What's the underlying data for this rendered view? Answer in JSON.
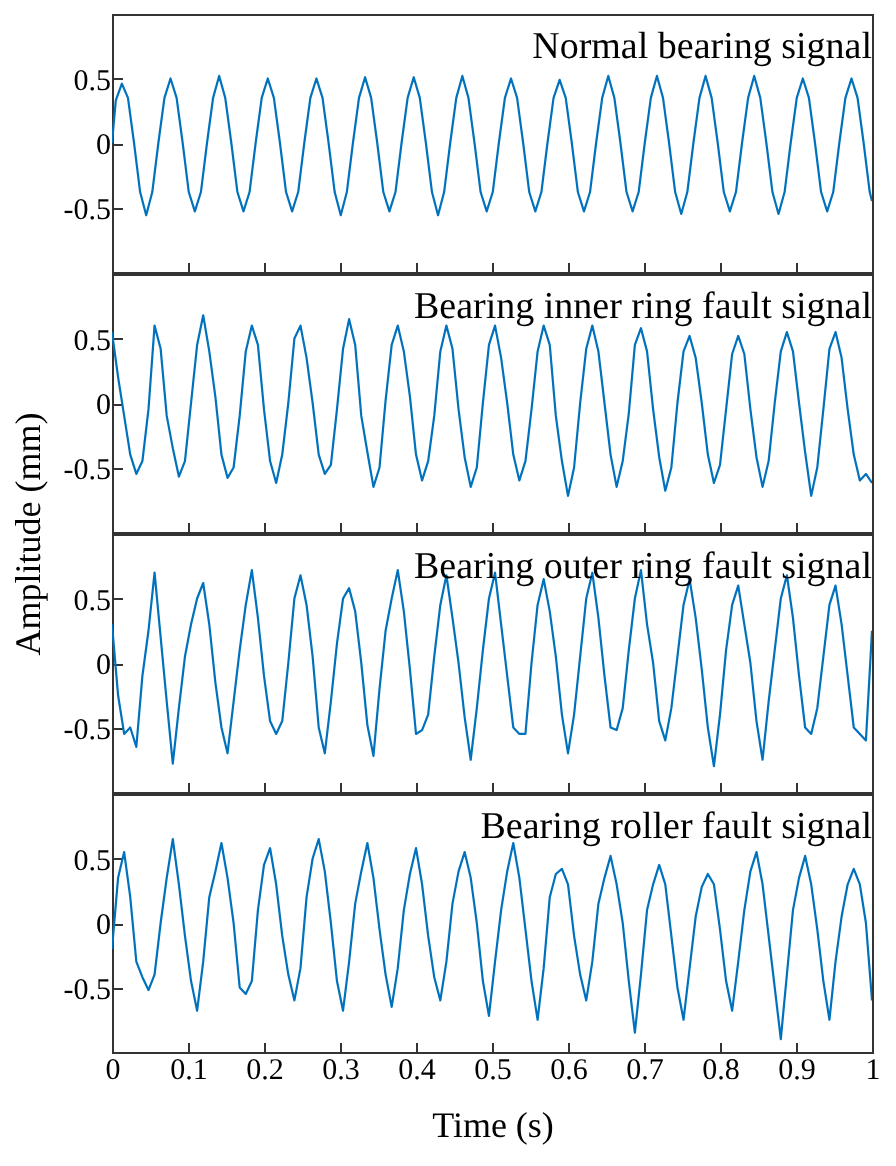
{
  "chart_data": [
    {
      "type": "line",
      "title": "Normal bearing signal",
      "tick_labels": "y",
      "xlim": [
        0,
        1
      ],
      "ylim": [
        -1,
        1
      ],
      "xticks": [
        0,
        0.1,
        0.2,
        0.3,
        0.4,
        0.5,
        0.6,
        0.7,
        0.8,
        0.9,
        1
      ],
      "yticks": [
        -0.5,
        0,
        0.5
      ],
      "x": [
        0,
        0.005,
        0.013,
        0.021,
        0.029,
        0.037,
        0.045,
        0.053,
        0.061,
        0.069,
        0.077,
        0.085,
        0.093,
        0.101,
        0.109,
        0.117,
        0.125,
        0.133,
        0.141,
        0.149,
        0.157,
        0.165,
        0.173,
        0.181,
        0.189,
        0.197,
        0.205,
        0.213,
        0.221,
        0.229,
        0.237,
        0.245,
        0.253,
        0.261,
        0.269,
        0.277,
        0.285,
        0.293,
        0.301,
        0.309,
        0.317,
        0.325,
        0.333,
        0.341,
        0.349,
        0.357,
        0.365,
        0.373,
        0.381,
        0.389,
        0.397,
        0.405,
        0.413,
        0.421,
        0.429,
        0.437,
        0.445,
        0.453,
        0.461,
        0.469,
        0.477,
        0.485,
        0.493,
        0.501,
        0.509,
        0.517,
        0.525,
        0.533,
        0.541,
        0.549,
        0.557,
        0.565,
        0.573,
        0.581,
        0.589,
        0.597,
        0.605,
        0.613,
        0.621,
        0.629,
        0.637,
        0.645,
        0.653,
        0.661,
        0.669,
        0.677,
        0.685,
        0.693,
        0.701,
        0.709,
        0.717,
        0.725,
        0.733,
        0.741,
        0.749,
        0.757,
        0.765,
        0.773,
        0.781,
        0.789,
        0.797,
        0.805,
        0.813,
        0.821,
        0.829,
        0.837,
        0.845,
        0.853,
        0.861,
        0.869,
        0.877,
        0.885,
        0.893,
        0.901,
        0.909,
        0.917,
        0.925,
        0.933,
        0.941,
        0.949,
        0.957,
        0.965,
        0.973,
        0.981,
        0.989,
        0.997,
        1
      ],
      "series": [
        {
          "color": "#0072bd",
          "values": [
            0,
            0.33,
            0.46,
            0.35,
            0,
            -0.38,
            -0.56,
            -0.38,
            0,
            0.35,
            0.5,
            0.35,
            0,
            -0.38,
            -0.53,
            -0.38,
            0,
            0.35,
            0.52,
            0.35,
            0,
            -0.38,
            -0.53,
            -0.38,
            0,
            0.35,
            0.5,
            0.35,
            0,
            -0.38,
            -0.53,
            -0.38,
            0,
            0.35,
            0.5,
            0.35,
            0,
            -0.38,
            -0.56,
            -0.38,
            0,
            0.35,
            0.51,
            0.35,
            0,
            -0.38,
            -0.53,
            -0.38,
            0,
            0.35,
            0.51,
            0.35,
            0,
            -0.38,
            -0.56,
            -0.38,
            0,
            0.35,
            0.52,
            0.35,
            0,
            -0.38,
            -0.53,
            -0.38,
            0,
            0.35,
            0.5,
            0.35,
            0,
            -0.38,
            -0.53,
            -0.38,
            0,
            0.35,
            0.49,
            0.35,
            0,
            -0.38,
            -0.53,
            -0.38,
            0,
            0.35,
            0.52,
            0.35,
            0,
            -0.38,
            -0.53,
            -0.38,
            0,
            0.35,
            0.52,
            0.35,
            0,
            -0.38,
            -0.55,
            -0.38,
            0,
            0.35,
            0.52,
            0.35,
            0,
            -0.38,
            -0.53,
            -0.38,
            0,
            0.35,
            0.52,
            0.35,
            0,
            -0.38,
            -0.55,
            -0.38,
            0,
            0.35,
            0.5,
            0.35,
            0,
            -0.38,
            -0.53,
            -0.38,
            0,
            0.35,
            0.5,
            0.35,
            0,
            -0.38,
            -0.45
          ]
        }
      ]
    },
    {
      "type": "line",
      "title": "Bearing inner ring fault signal",
      "ylabel": "Amplitude (mm)",
      "tick_labels": "y",
      "xlim": [
        0,
        1
      ],
      "ylim": [
        -1,
        1
      ],
      "xticks": [
        0,
        0.1,
        0.2,
        0.3,
        0.4,
        0.5,
        0.6,
        0.7,
        0.8,
        0.9,
        1
      ],
      "yticks": [
        -0.5,
        0,
        0.5
      ],
      "x": [
        0,
        0.008,
        0.016,
        0.024,
        0.032,
        0.04,
        0.048,
        0.056,
        0.064,
        0.072,
        0.08,
        0.088,
        0.096,
        0.104,
        0.112,
        0.12,
        0.128,
        0.136,
        0.144,
        0.152,
        0.16,
        0.168,
        0.176,
        0.184,
        0.192,
        0.2,
        0.208,
        0.216,
        0.224,
        0.232,
        0.24,
        0.248,
        0.256,
        0.264,
        0.272,
        0.28,
        0.288,
        0.296,
        0.304,
        0.312,
        0.32,
        0.328,
        0.336,
        0.344,
        0.352,
        0.36,
        0.368,
        0.376,
        0.384,
        0.392,
        0.4,
        0.408,
        0.416,
        0.424,
        0.432,
        0.44,
        0.448,
        0.456,
        0.464,
        0.472,
        0.48,
        0.488,
        0.496,
        0.504,
        0.512,
        0.52,
        0.528,
        0.536,
        0.544,
        0.552,
        0.56,
        0.568,
        0.576,
        0.584,
        0.592,
        0.6,
        0.608,
        0.616,
        0.624,
        0.632,
        0.64,
        0.648,
        0.656,
        0.664,
        0.672,
        0.68,
        0.688,
        0.696,
        0.704,
        0.712,
        0.72,
        0.728,
        0.736,
        0.744,
        0.752,
        0.76,
        0.768,
        0.776,
        0.784,
        0.792,
        0.8,
        0.808,
        0.816,
        0.824,
        0.832,
        0.84,
        0.848,
        0.856,
        0.864,
        0.872,
        0.88,
        0.888,
        0.896,
        0.904,
        0.912,
        0.92,
        0.928,
        0.936,
        0.944,
        0.952,
        0.96,
        0.968,
        0.976,
        0.984,
        0.992,
        1
      ],
      "series": [
        {
          "color": "#0072bd",
          "values": [
            0.55,
            0.2,
            -0.1,
            -0.4,
            -0.55,
            -0.45,
            -0.05,
            0.6,
            0.42,
            -0.1,
            -0.35,
            -0.57,
            -0.45,
            0,
            0.45,
            0.68,
            0.4,
            0.05,
            -0.4,
            -0.58,
            -0.5,
            -0.1,
            0.4,
            0.6,
            0.45,
            -0.05,
            -0.45,
            -0.62,
            -0.4,
            0,
            0.5,
            0.6,
            0.35,
            0,
            -0.4,
            -0.55,
            -0.48,
            -0.05,
            0.42,
            0.65,
            0.45,
            -0.1,
            -0.38,
            -0.65,
            -0.5,
            0.02,
            0.45,
            0.6,
            0.4,
            0.05,
            -0.4,
            -0.6,
            -0.45,
            -0.1,
            0.4,
            0.6,
            0.42,
            -0.05,
            -0.42,
            -0.65,
            -0.5,
            0,
            0.45,
            0.6,
            0.35,
            0,
            -0.4,
            -0.6,
            -0.45,
            -0.05,
            0.4,
            0.6,
            0.45,
            -0.1,
            -0.45,
            -0.72,
            -0.5,
            0,
            0.42,
            0.6,
            0.4,
            0,
            -0.4,
            -0.65,
            -0.45,
            -0.08,
            0.45,
            0.58,
            0.4,
            -0.05,
            -0.42,
            -0.68,
            -0.5,
            0,
            0.4,
            0.52,
            0.35,
            0,
            -0.4,
            -0.62,
            -0.48,
            -0.05,
            0.38,
            0.52,
            0.38,
            -0.05,
            -0.42,
            -0.65,
            -0.45,
            0,
            0.4,
            0.55,
            0.4,
            0,
            -0.38,
            -0.72,
            -0.5,
            -0.05,
            0.42,
            0.55,
            0.35,
            -0.05,
            -0.4,
            -0.6,
            -0.55,
            -0.62
          ]
        }
      ]
    },
    {
      "type": "line",
      "title": "Bearing outer ring fault signal",
      "tick_labels": "y",
      "xlim": [
        0,
        1
      ],
      "ylim": [
        -1,
        1
      ],
      "xticks": [
        0,
        0.1,
        0.2,
        0.3,
        0.4,
        0.5,
        0.6,
        0.7,
        0.8,
        0.9,
        1
      ],
      "yticks": [
        -0.5,
        0,
        0.5
      ],
      "x": [
        0,
        0.008,
        0.016,
        0.024,
        0.032,
        0.04,
        0.048,
        0.056,
        0.064,
        0.072,
        0.08,
        0.088,
        0.096,
        0.104,
        0.112,
        0.12,
        0.128,
        0.136,
        0.144,
        0.152,
        0.16,
        0.168,
        0.176,
        0.184,
        0.192,
        0.2,
        0.208,
        0.216,
        0.224,
        0.232,
        0.24,
        0.248,
        0.256,
        0.264,
        0.272,
        0.28,
        0.288,
        0.296,
        0.304,
        0.312,
        0.32,
        0.328,
        0.336,
        0.344,
        0.352,
        0.36,
        0.368,
        0.376,
        0.384,
        0.392,
        0.4,
        0.408,
        0.416,
        0.424,
        0.432,
        0.44,
        0.448,
        0.456,
        0.464,
        0.472,
        0.48,
        0.488,
        0.496,
        0.504,
        0.512,
        0.52,
        0.528,
        0.536,
        0.544,
        0.552,
        0.56,
        0.568,
        0.576,
        0.584,
        0.592,
        0.6,
        0.608,
        0.616,
        0.624,
        0.632,
        0.64,
        0.648,
        0.656,
        0.664,
        0.672,
        0.68,
        0.688,
        0.696,
        0.704,
        0.712,
        0.72,
        0.728,
        0.736,
        0.744,
        0.752,
        0.76,
        0.768,
        0.776,
        0.784,
        0.792,
        0.8,
        0.808,
        0.816,
        0.824,
        0.832,
        0.84,
        0.848,
        0.856,
        0.864,
        0.872,
        0.88,
        0.888,
        0.896,
        0.904,
        0.912,
        0.92,
        0.928,
        0.936,
        0.944,
        0.952,
        0.96,
        0.968,
        0.976,
        0.984,
        0.992,
        1
      ],
      "series": [
        {
          "color": "#0072bd",
          "values": [
            0.3,
            -0.25,
            -0.55,
            -0.5,
            -0.65,
            -0.1,
            0.25,
            0.7,
            0.2,
            -0.3,
            -0.78,
            -0.35,
            0.05,
            0.3,
            0.5,
            0.62,
            0.3,
            -0.15,
            -0.5,
            -0.7,
            -0.3,
            0.1,
            0.45,
            0.72,
            0.35,
            -0.1,
            -0.45,
            -0.55,
            -0.45,
            0,
            0.5,
            0.68,
            0.45,
            0.05,
            -0.5,
            -0.7,
            -0.3,
            0.15,
            0.5,
            0.58,
            0.4,
            0,
            -0.48,
            -0.72,
            -0.2,
            0.25,
            0.5,
            0.72,
            0.4,
            -0.05,
            -0.55,
            -0.52,
            -0.4,
            0.05,
            0.45,
            0.68,
            0.35,
            0,
            -0.42,
            -0.75,
            -0.35,
            0.1,
            0.5,
            0.7,
            0.3,
            -0.1,
            -0.5,
            -0.55,
            -0.55,
            0,
            0.45,
            0.65,
            0.4,
            0.05,
            -0.4,
            -0.7,
            -0.4,
            0.05,
            0.5,
            0.7,
            0.35,
            -0.1,
            -0.5,
            -0.52,
            -0.35,
            0.1,
            0.5,
            0.72,
            0.3,
            0,
            -0.45,
            -0.6,
            -0.35,
            0.05,
            0.45,
            0.65,
            0.35,
            -0.05,
            -0.5,
            -0.8,
            -0.4,
            0.1,
            0.45,
            0.6,
            0.3,
            0,
            -0.45,
            -0.75,
            -0.3,
            0.1,
            0.5,
            0.68,
            0.35,
            -0.1,
            -0.5,
            -0.55,
            -0.35,
            0.05,
            0.45,
            0.6,
            0.3,
            -0.1,
            -0.5,
            -0.55,
            -0.6,
            0.25
          ]
        }
      ]
    },
    {
      "type": "line",
      "title": "Bearing roller fault signal",
      "xlabel": "Time (s)",
      "xlim": [
        0,
        1
      ],
      "ylim": [
        -1,
        1
      ],
      "xticks": [
        0,
        0.1,
        0.2,
        0.3,
        0.4,
        0.5,
        0.6,
        0.7,
        0.8,
        0.9,
        1
      ],
      "yticks": [
        -0.5,
        0,
        0.5
      ],
      "x": [
        0,
        0.008,
        0.016,
        0.024,
        0.032,
        0.04,
        0.048,
        0.056,
        0.064,
        0.072,
        0.08,
        0.088,
        0.096,
        0.104,
        0.112,
        0.12,
        0.128,
        0.136,
        0.144,
        0.152,
        0.16,
        0.168,
        0.176,
        0.184,
        0.192,
        0.2,
        0.208,
        0.216,
        0.224,
        0.232,
        0.24,
        0.248,
        0.256,
        0.264,
        0.272,
        0.28,
        0.288,
        0.296,
        0.304,
        0.312,
        0.32,
        0.328,
        0.336,
        0.344,
        0.352,
        0.36,
        0.368,
        0.376,
        0.384,
        0.392,
        0.4,
        0.408,
        0.416,
        0.424,
        0.432,
        0.44,
        0.448,
        0.456,
        0.464,
        0.472,
        0.48,
        0.488,
        0.496,
        0.504,
        0.512,
        0.52,
        0.528,
        0.536,
        0.544,
        0.552,
        0.56,
        0.568,
        0.576,
        0.584,
        0.592,
        0.6,
        0.608,
        0.616,
        0.624,
        0.632,
        0.64,
        0.648,
        0.656,
        0.664,
        0.672,
        0.68,
        0.688,
        0.696,
        0.704,
        0.712,
        0.72,
        0.728,
        0.736,
        0.744,
        0.752,
        0.76,
        0.768,
        0.776,
        0.784,
        0.792,
        0.8,
        0.808,
        0.816,
        0.824,
        0.832,
        0.84,
        0.848,
        0.856,
        0.864,
        0.872,
        0.88,
        0.888,
        0.896,
        0.904,
        0.912,
        0.92,
        0.928,
        0.936,
        0.944,
        0.952,
        0.96,
        0.968,
        0.976,
        0.984,
        0.992,
        1
      ],
      "series": [
        {
          "color": "#0072bd",
          "values": [
            -0.2,
            0.35,
            0.55,
            0.2,
            -0.3,
            -0.42,
            -0.52,
            -0.4,
            0,
            0.35,
            0.65,
            0.3,
            -0.1,
            -0.45,
            -0.68,
            -0.3,
            0.2,
            0.4,
            0.62,
            0.35,
            0,
            -0.5,
            -0.55,
            -0.45,
            0.1,
            0.45,
            0.58,
            0.3,
            -0.1,
            -0.4,
            -0.6,
            -0.35,
            0.2,
            0.5,
            0.65,
            0.4,
            0,
            -0.45,
            -0.68,
            -0.3,
            0.15,
            0.4,
            0.62,
            0.35,
            -0.05,
            -0.4,
            -0.65,
            -0.35,
            0.1,
            0.38,
            0.58,
            0.3,
            -0.1,
            -0.42,
            -0.6,
            -0.3,
            0.15,
            0.4,
            0.55,
            0.35,
            0,
            -0.45,
            -0.72,
            -0.3,
            0.1,
            0.4,
            0.62,
            0.35,
            -0.05,
            -0.45,
            -0.75,
            -0.35,
            0.2,
            0.38,
            0.42,
            0.3,
            -0.1,
            -0.4,
            -0.6,
            -0.3,
            0.15,
            0.35,
            0.52,
            0.3,
            0,
            -0.45,
            -0.85,
            -0.4,
            0.1,
            0.3,
            0.45,
            0.3,
            -0.1,
            -0.5,
            -0.75,
            -0.35,
            0.05,
            0.28,
            0.38,
            0.3,
            -0.05,
            -0.45,
            -0.68,
            -0.3,
            0.1,
            0.4,
            0.55,
            0.3,
            -0.1,
            -0.5,
            -0.9,
            -0.4,
            0.1,
            0.35,
            0.52,
            0.3,
            -0.05,
            -0.45,
            -0.75,
            -0.3,
            0.05,
            0.3,
            0.42,
            0.3,
            0,
            -0.6
          ]
        }
      ]
    }
  ]
}
